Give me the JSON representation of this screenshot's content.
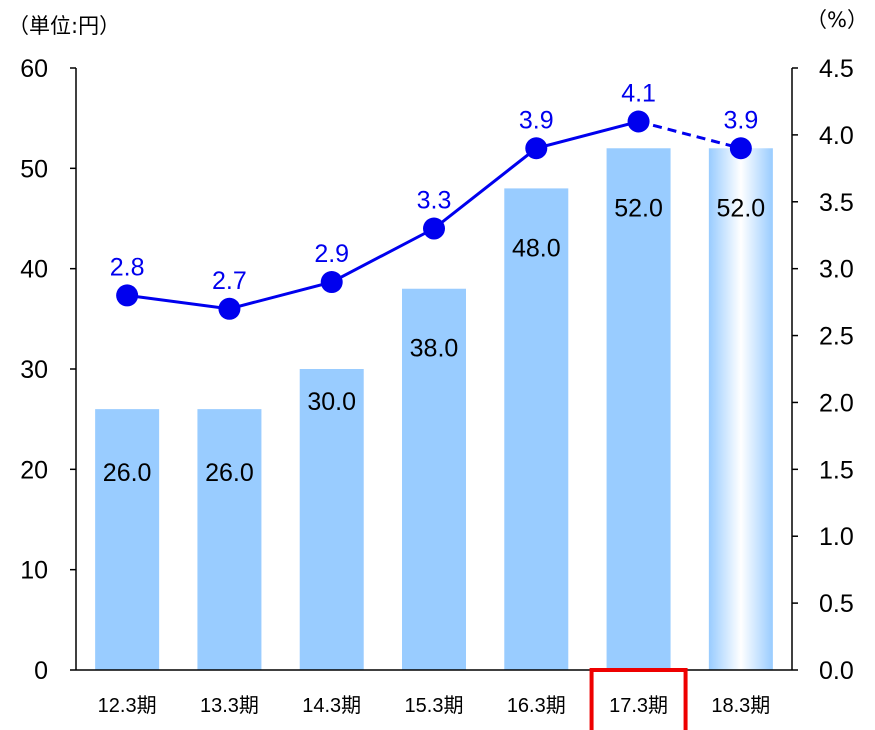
{
  "chart_data": {
    "type": "bar",
    "categories": [
      "12.3期",
      "13.3期",
      "14.3期",
      "15.3期",
      "16.3期",
      "17.3期",
      "18.3期"
    ],
    "unit_left": "（単位:円）",
    "unit_right": "（%）",
    "y_left": {
      "ylim": [
        0,
        60
      ],
      "ticks": [
        "0",
        "10",
        "20",
        "30",
        "40",
        "50",
        "60"
      ]
    },
    "y_right": {
      "ylim": [
        0,
        4.5
      ],
      "ticks": [
        "0.0",
        "0.5",
        "1.0",
        "1.5",
        "2.0",
        "2.5",
        "3.0",
        "3.5",
        "4.0",
        "4.5"
      ]
    },
    "bar_series": {
      "values": [
        26.0,
        26.0,
        30.0,
        38.0,
        48.0,
        52.0,
        52.0
      ],
      "labels": [
        "26.0",
        "26.0",
        "30.0",
        "38.0",
        "48.0",
        "52.0",
        "52.0"
      ],
      "color": "#99ccff",
      "forecast_index": 6
    },
    "line_series": {
      "axis": "right",
      "values": [
        2.8,
        2.7,
        2.9,
        3.3,
        3.9,
        4.1,
        3.9
      ],
      "labels": [
        "2.8",
        "2.7",
        "2.9",
        "3.3",
        "3.9",
        "4.1",
        "3.9"
      ],
      "color": "#0000ee",
      "dashed_last_segment": true
    },
    "highlight_category_index": 5,
    "highlight_color": "#ee0000",
    "grid": false
  }
}
